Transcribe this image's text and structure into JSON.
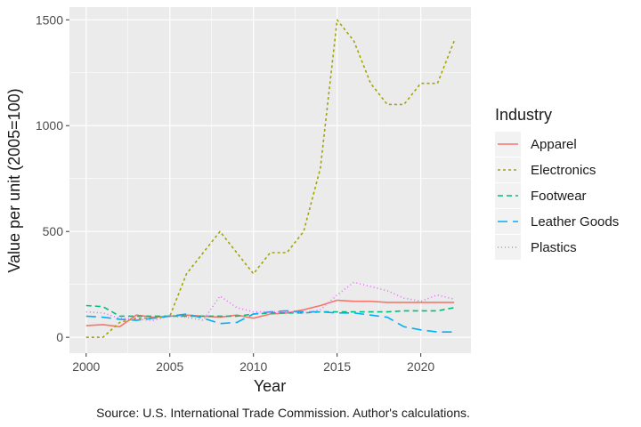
{
  "chart_data": {
    "type": "line",
    "xlabel": "Year",
    "ylabel": "Value per unit (2005=100)",
    "caption": "Source: U.S. International Trade Commission.  Author's calculations.",
    "legend_title": "Industry",
    "legend_position": "right",
    "grid": true,
    "xlim": [
      1999,
      2023
    ],
    "ylim": [
      -75,
      1560
    ],
    "x_ticks": [
      2000,
      2005,
      2010,
      2015,
      2020
    ],
    "y_ticks": [
      0,
      500,
      1000,
      1500
    ],
    "x_tick_labels": [
      "2000",
      "2005",
      "2010",
      "2015",
      "2020"
    ],
    "y_tick_labels": [
      "0",
      "500",
      "1000",
      "1500"
    ],
    "x": [
      2000,
      2001,
      2002,
      2003,
      2004,
      2005,
      2006,
      2007,
      2008,
      2009,
      2010,
      2011,
      2012,
      2013,
      2014,
      2015,
      2016,
      2017,
      2018,
      2019,
      2020,
      2021,
      2022
    ],
    "series": [
      {
        "name": "Apparel",
        "color": "#F8766D",
        "dash": "solid",
        "values": [
          55,
          60,
          50,
          105,
          95,
          100,
          105,
          100,
          95,
          105,
          90,
          110,
          115,
          130,
          150,
          175,
          170,
          170,
          165,
          165,
          165,
          165,
          165
        ]
      },
      {
        "name": "Electronics",
        "color": "#A3A500",
        "dash": "short-dash",
        "values": [
          0,
          0,
          70,
          90,
          90,
          100,
          300,
          400,
          500,
          400,
          300,
          400,
          400,
          500,
          800,
          1500,
          1400,
          1200,
          1100,
          1100,
          1200,
          1200,
          1400
        ]
      },
      {
        "name": "Footwear",
        "color": "#00BF7D",
        "dash": "dash",
        "values": [
          150,
          145,
          100,
          100,
          100,
          100,
          100,
          100,
          100,
          100,
          110,
          115,
          115,
          115,
          120,
          120,
          120,
          120,
          120,
          125,
          125,
          125,
          140
        ]
      },
      {
        "name": "Leather Goods",
        "color": "#00B0F6",
        "dash": "long-dash",
        "values": [
          100,
          95,
          85,
          80,
          90,
          100,
          110,
          90,
          65,
          70,
          110,
          120,
          125,
          120,
          120,
          115,
          115,
          105,
          95,
          50,
          35,
          25,
          25
        ]
      },
      {
        "name": "Plastics",
        "color": "#E76BF3",
        "dash": "dotted",
        "values": [
          120,
          115,
          90,
          85,
          80,
          100,
          95,
          80,
          195,
          140,
          120,
          120,
          120,
          115,
          130,
          200,
          260,
          240,
          220,
          185,
          170,
          200,
          180
        ]
      }
    ]
  }
}
